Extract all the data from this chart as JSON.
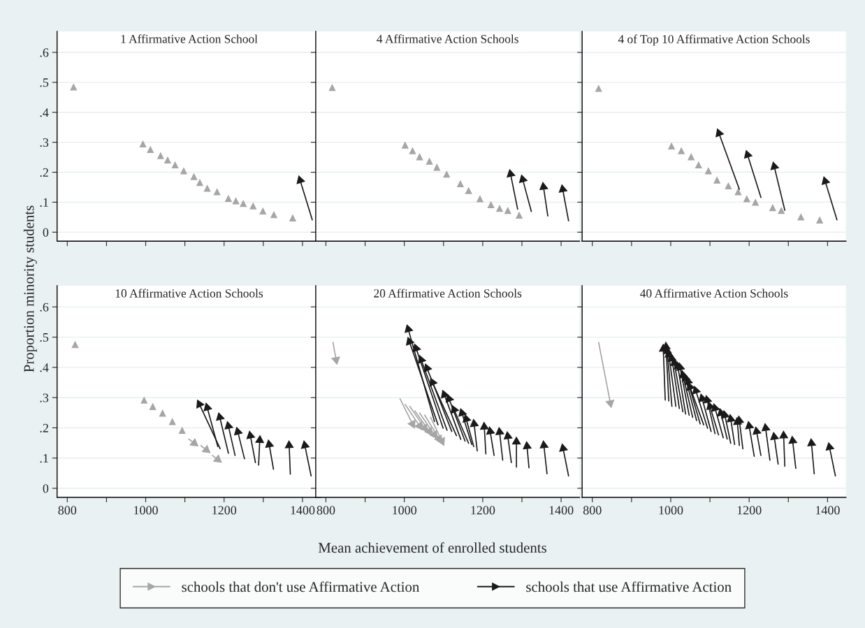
{
  "chart_data": [
    {
      "type": "line",
      "title": "1 Affirmative Action School",
      "ylabel": "Proportion minority students",
      "legend": "bottom",
      "grid": "y",
      "tick_labels": "y",
      "marker": "triangle",
      "xlim": [
        774,
        1447
      ],
      "ylim": [
        -0.03,
        0.67
      ],
      "xticks": [
        {
          "value": 800,
          "label": null
        },
        {
          "value": 900,
          "label": null
        },
        {
          "value": 1000,
          "label": null
        },
        {
          "value": 1100,
          "label": null
        },
        {
          "value": 1200,
          "label": null
        },
        {
          "value": 1300,
          "label": null
        },
        {
          "value": 1400,
          "label": null
        }
      ],
      "yticks": [
        {
          "value": 0,
          "label": "0"
        },
        {
          "value": 0.1,
          "label": ".1"
        },
        {
          "value": 0.2,
          "label": ".2"
        },
        {
          "value": 0.3,
          "label": ".3"
        },
        {
          "value": 0.4,
          "label": ".4"
        },
        {
          "value": 0.5,
          "label": ".5"
        },
        {
          "value": 0.6,
          "label": ".6"
        }
      ],
      "series": [
        {
          "name": "schools that don't use Affirmative Action",
          "type": "scatter",
          "color": "#a6a6a6",
          "x": [
            816,
            993,
            1012,
            1038,
            1056,
            1075,
            1097,
            1123,
            1138,
            1157,
            1182,
            1211,
            1230,
            1249,
            1274,
            1299,
            1327,
            1375
          ],
          "values": [
            0.485,
            0.295,
            0.276,
            0.256,
            0.241,
            0.225,
            0.205,
            0.186,
            0.166,
            0.147,
            0.135,
            0.113,
            0.105,
            0.096,
            0.088,
            0.071,
            0.059,
            0.048
          ]
        },
        {
          "name": "schools that use Affirmative Action",
          "color": "#1a1a1a",
          "x": [
            1425,
            1394
          ],
          "values": [
            0.041,
            0.173
          ]
        }
      ]
    },
    {
      "type": "line",
      "title": "4 Affirmative Action Schools",
      "grid": "y",
      "tick_labels": false,
      "marker": "triangle",
      "xlim": [
        774,
        1447
      ],
      "ylim": [
        -0.03,
        0.67
      ],
      "xticks": [
        {
          "value": 800,
          "label": null
        },
        {
          "value": 900,
          "label": null
        },
        {
          "value": 1000,
          "label": null
        },
        {
          "value": 1100,
          "label": null
        },
        {
          "value": 1200,
          "label": null
        },
        {
          "value": 1300,
          "label": null
        },
        {
          "value": 1400,
          "label": null
        }
      ],
      "yticks": [
        {
          "value": 0,
          "label": null
        },
        {
          "value": 0.1,
          "label": null
        },
        {
          "value": 0.2,
          "label": null
        },
        {
          "value": 0.3,
          "label": null
        },
        {
          "value": 0.4,
          "label": null
        },
        {
          "value": 0.5,
          "label": null
        },
        {
          "value": 0.6,
          "label": null
        }
      ],
      "series": [
        {
          "type": "scatter",
          "color": "#a6a6a6",
          "x": [
            816,
            1002,
            1021,
            1039,
            1064,
            1083,
            1108,
            1143,
            1164,
            1193,
            1221,
            1243,
            1264,
            1293
          ],
          "values": [
            0.483,
            0.291,
            0.272,
            0.252,
            0.237,
            0.217,
            0.194,
            0.162,
            0.139,
            0.112,
            0.092,
            0.08,
            0.073,
            0.057
          ]
        },
        {
          "color": "#1a1a1a",
          "x": [
            1289,
            1271,
            null,
            1324,
            1302,
            null,
            1366,
            1355,
            null,
            1419,
            1404
          ],
          "values": [
            0.077,
            0.194,
            null,
            0.069,
            0.176,
            null,
            0.054,
            0.151,
            null,
            0.038,
            0.143
          ]
        }
      ]
    },
    {
      "type": "line",
      "title": "4 of Top 10 Affirmative Action Schools",
      "grid": "y",
      "tick_labels": false,
      "marker": "triangle",
      "xlim": [
        774,
        1447
      ],
      "ylim": [
        -0.03,
        0.67
      ],
      "xticks": [
        {
          "value": 800,
          "label": null
        },
        {
          "value": 900,
          "label": null
        },
        {
          "value": 1000,
          "label": null
        },
        {
          "value": 1100,
          "label": null
        },
        {
          "value": 1200,
          "label": null
        },
        {
          "value": 1300,
          "label": null
        },
        {
          "value": 1400,
          "label": null
        }
      ],
      "yticks": [
        {
          "value": 0,
          "label": null
        },
        {
          "value": 0.1,
          "label": null
        },
        {
          "value": 0.2,
          "label": null
        },
        {
          "value": 0.3,
          "label": null
        },
        {
          "value": 0.4,
          "label": null
        },
        {
          "value": 0.5,
          "label": null
        },
        {
          "value": 0.6,
          "label": null
        }
      ],
      "series": [
        {
          "type": "scatter",
          "color": "#a6a6a6",
          "x": [
            816,
            1002,
            1027,
            1052,
            1071,
            1096,
            1118,
            1147,
            1172,
            1194,
            1216,
            1260,
            1282,
            1332,
            1380
          ],
          "values": [
            0.48,
            0.288,
            0.272,
            0.252,
            0.225,
            0.205,
            0.174,
            0.155,
            0.135,
            0.112,
            0.1,
            0.082,
            0.073,
            0.051,
            0.041
          ]
        },
        {
          "color": "#1a1a1a",
          "x": [
            1175,
            1123,
            null,
            1230,
            1196,
            null,
            1291,
            1264,
            null,
            1424,
            1394
          ],
          "values": [
            0.143,
            0.33,
            null,
            0.116,
            0.258,
            null,
            0.073,
            0.219,
            null,
            0.041,
            0.17
          ]
        }
      ]
    },
    {
      "type": "line",
      "title": "10 Affirmative Action Schools",
      "grid": "y",
      "marker": "triangle",
      "xlim": [
        774,
        1447
      ],
      "ylim": [
        -0.03,
        0.67
      ],
      "xticks": [
        {
          "value": 800,
          "label": "800"
        },
        {
          "value": 900,
          "label": null
        },
        {
          "value": 1000,
          "label": "1000"
        },
        {
          "value": 1100,
          "label": null
        },
        {
          "value": 1200,
          "label": "1200"
        },
        {
          "value": 1300,
          "label": null
        },
        {
          "value": 1400,
          "label": "1400"
        }
      ],
      "yticks": [
        {
          "value": 0,
          "label": "0"
        },
        {
          "value": 0.1,
          "label": ".1"
        },
        {
          "value": 0.2,
          "label": ".2"
        },
        {
          "value": 0.3,
          "label": ".3"
        },
        {
          "value": 0.4,
          "label": ".4"
        },
        {
          "value": 0.5,
          "label": ".5"
        },
        {
          "value": 0.6,
          "label": ".6"
        }
      ],
      "series": [
        {
          "type": "scatter",
          "color": "#a6a6a6",
          "x": [
            820,
            996,
            1018,
            1043,
            1068,
            1093
          ],
          "values": [
            0.476,
            0.292,
            0.271,
            0.249,
            0.221,
            0.192
          ]
        },
        {
          "color": "#a6a6a6",
          "x": [
            1110,
            1124,
            null,
            1141,
            1155,
            null,
            1170,
            1184
          ],
          "values": [
            0.163,
            0.149,
            null,
            0.141,
            0.127,
            null,
            0.109,
            0.095
          ]
        },
        {
          "color": "#1a1a1a",
          "x": [
            1190,
            1137,
            null,
            1184,
            1157,
            null,
            1211,
            1189,
            null,
            1228,
            1211,
            null,
            1252,
            1235,
            null,
            1280,
            1267,
            null,
            1288,
            1291,
            null,
            1326,
            1315,
            null,
            1369,
            1366,
            null,
            1422,
            1406
          ],
          "values": [
            0.131,
            0.278,
            null,
            0.138,
            0.267,
            null,
            0.116,
            0.235,
            null,
            0.109,
            0.206,
            null,
            0.098,
            0.187,
            null,
            0.085,
            0.174,
            null,
            0.077,
            0.159,
            null,
            0.063,
            0.145,
            null,
            0.047,
            0.142,
            null,
            0.041,
            0.142
          ]
        }
      ]
    },
    {
      "type": "line",
      "title": "20 Affirmative Action Schools",
      "xlabel": "Mean achievement of enrolled students",
      "grid": "y",
      "tick_labels": "x",
      "marker": "triangle",
      "xlim": [
        774,
        1447
      ],
      "ylim": [
        -0.03,
        0.67
      ],
      "xticks": [
        {
          "value": 800,
          "label": "800"
        },
        {
          "value": 900,
          "label": null
        },
        {
          "value": 1000,
          "label": "1000"
        },
        {
          "value": 1100,
          "label": null
        },
        {
          "value": 1200,
          "label": "1200"
        },
        {
          "value": 1300,
          "label": null
        },
        {
          "value": 1400,
          "label": "1400"
        }
      ],
      "yticks": [
        {
          "value": 0,
          "label": null
        },
        {
          "value": 0.1,
          "label": null
        },
        {
          "value": 0.2,
          "label": null
        },
        {
          "value": 0.3,
          "label": null
        },
        {
          "value": 0.4,
          "label": null
        },
        {
          "value": 0.5,
          "label": null
        },
        {
          "value": 0.6,
          "label": null
        }
      ],
      "series": [
        {
          "color": "#a6a6a6",
          "x": [
            818,
            826,
            null,
            989,
            1021,
            null,
            1002,
            1039,
            null,
            1014,
            1052,
            null,
            1027,
            1064,
            null,
            1039,
            1077,
            null,
            1052,
            1089,
            null,
            1067,
            1096
          ],
          "values": [
            0.483,
            0.425,
            null,
            0.296,
            0.213,
            null,
            0.278,
            0.206,
            null,
            0.271,
            0.199,
            null,
            0.256,
            0.188,
            null,
            0.249,
            0.177,
            null,
            0.242,
            0.163,
            null,
            0.235,
            0.156
          ]
        },
        {
          "color": "#1a1a1a",
          "x": [
            1077,
            1010,
            null,
            1086,
            1013,
            null,
            1099,
            1030,
            null,
            1109,
            1043,
            null,
            1121,
            1058,
            null,
            1133,
            1072,
            null,
            1144,
            1102,
            null,
            1155,
            1114,
            null,
            1164,
            1127,
            null,
            1172,
            1147,
            null,
            1177,
            1158,
            null,
            1186,
            1178,
            null,
            1208,
            1204,
            null,
            1229,
            1219,
            null,
            1251,
            1243,
            null,
            1273,
            1264,
            null,
            1286,
            1286,
            null,
            1318,
            1313,
            null,
            1364,
            1356,
            null,
            1419,
            1405
          ],
          "values": [
            0.221,
            0.526,
            null,
            0.21,
            0.485,
            null,
            0.199,
            0.463,
            null,
            0.192,
            0.425,
            null,
            0.188,
            0.397,
            null,
            0.174,
            0.35,
            null,
            0.162,
            0.31,
            null,
            0.156,
            0.296,
            null,
            0.149,
            0.26,
            null,
            0.145,
            0.249,
            null,
            0.138,
            0.229,
            null,
            0.124,
            0.213,
            null,
            0.114,
            0.203,
            null,
            0.109,
            0.188,
            null,
            0.093,
            0.186,
            null,
            0.085,
            0.172,
            null,
            0.07,
            0.154,
            null,
            0.068,
            0.139,
            null,
            0.048,
            0.142,
            null,
            0.041,
            0.132
          ]
        }
      ]
    },
    {
      "type": "line",
      "title": "40 Affirmative Action Schools",
      "grid": "y",
      "tick_labels": "x",
      "marker": "triangle",
      "xlim": [
        774,
        1447
      ],
      "ylim": [
        -0.03,
        0.67
      ],
      "xticks": [
        {
          "value": 800,
          "label": "800"
        },
        {
          "value": 900,
          "label": null
        },
        {
          "value": 1000,
          "label": "1000"
        },
        {
          "value": 1100,
          "label": null
        },
        {
          "value": 1200,
          "label": "1200"
        },
        {
          "value": 1300,
          "label": null
        },
        {
          "value": 1400,
          "label": "1400"
        }
      ],
      "yticks": [
        {
          "value": 0,
          "label": null
        },
        {
          "value": 0.1,
          "label": null
        },
        {
          "value": 0.2,
          "label": null
        },
        {
          "value": 0.3,
          "label": null
        },
        {
          "value": 0.4,
          "label": null
        },
        {
          "value": 0.5,
          "label": null
        },
        {
          "value": 0.6,
          "label": null
        }
      ],
      "series": [
        {
          "color": "#a6a6a6",
          "x": [
            816,
            846
          ],
          "values": [
            0.483,
            0.282
          ]
        },
        {
          "color": "#1a1a1a",
          "x": [
            986,
            981,
            null,
            995,
            988,
            null,
            1003,
            991,
            null,
            1013,
            995,
            null,
            1022,
            1003,
            null,
            1031,
            1009,
            null,
            1038,
            1018,
            null,
            1047,
            1024,
            null,
            1056,
            1031,
            null,
            1066,
            1038,
            null,
            1075,
            1044,
            null,
            1084,
            1049,
            null,
            1094,
            1064,
            null,
            1103,
            1080,
            null,
            1113,
            1093,
            null,
            1122,
            1100,
            null,
            1134,
            1113,
            null,
            1144,
            1128,
            null,
            1153,
            1138,
            null,
            1163,
            1153,
            null,
            1175,
            1170,
            null,
            1184,
            1175,
            null,
            1213,
            1200,
            null,
            1230,
            1219,
            null,
            1253,
            1242,
            null,
            1274,
            1264,
            null,
            1291,
            1288,
            null,
            1319,
            1311,
            null,
            1366,
            1359,
            null,
            1420,
            1405
          ],
          "values": [
            0.292,
            0.461,
            null,
            0.289,
            0.468,
            null,
            0.271,
            0.454,
            null,
            0.271,
            0.443,
            null,
            0.264,
            0.429,
            null,
            0.253,
            0.415,
            null,
            0.246,
            0.404,
            null,
            0.242,
            0.4,
            null,
            0.235,
            0.375,
            null,
            0.224,
            0.364,
            null,
            0.213,
            0.353,
            null,
            0.21,
            0.335,
            null,
            0.199,
            0.323,
            null,
            0.188,
            0.297,
            null,
            0.181,
            0.292,
            null,
            0.177,
            0.271,
            null,
            0.167,
            0.265,
            null,
            0.163,
            0.249,
            null,
            0.149,
            0.242,
            null,
            0.145,
            0.229,
            null,
            0.142,
            0.219,
            null,
            0.131,
            0.224,
            null,
            0.106,
            0.206,
            null,
            0.109,
            0.188,
            null,
            0.093,
            0.199,
            null,
            0.08,
            0.17,
            null,
            0.073,
            0.174,
            null,
            0.066,
            0.157,
            null,
            0.048,
            0.149,
            null,
            0.041,
            0.136
          ]
        }
      ]
    }
  ]
}
